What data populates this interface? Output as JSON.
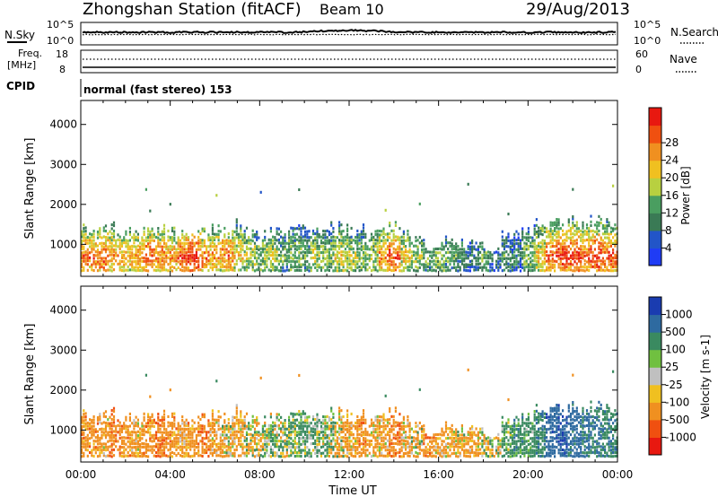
{
  "header": {
    "station": "Zhongshan Station (fitACF)",
    "beam": "Beam 10",
    "date": "29/Aug/2013"
  },
  "strip_noise": {
    "left_label": "N.Sky",
    "right_label": "N.Search",
    "left_ticks": [
      "10^5",
      "10^0"
    ],
    "right_ticks": [
      "10^5",
      "10^0"
    ]
  },
  "strip_freq": {
    "left_label_1": "Freq.",
    "left_label_2": "[MHz]",
    "right_label": "Nave",
    "left_ticks": [
      "18",
      "8"
    ],
    "right_ticks": [
      "60",
      "0"
    ]
  },
  "cpid": {
    "label": "CPID",
    "text": "normal (fast stereo) 153"
  },
  "colors": {
    "power_scale": [
      "#1f3cf5",
      "#2255c8",
      "#3a7a55",
      "#4a9e60",
      "#b8d040",
      "#f0c020",
      "#f09020",
      "#f05010",
      "#e81810"
    ],
    "velocity_scale": [
      "#e81810",
      "#f05010",
      "#f09020",
      "#f0c020",
      "#c0c0c0",
      "#70c040",
      "#3a8a60",
      "#2e6aa0",
      "#1a3cb0"
    ]
  },
  "chart_data": [
    {
      "type": "heatmap",
      "panel": "power",
      "ylabel": "Slant Range [km]",
      "ylim": [
        200,
        4600
      ],
      "yticks": [
        "1000",
        "2000",
        "3000",
        "4000"
      ],
      "colorbar_label": "Power [dB]",
      "colorbar_ticks": [
        "4",
        "8",
        "12",
        "16",
        "20",
        "24",
        "28"
      ],
      "colorbar_range": [
        0,
        30
      ],
      "x_hours": [
        0.5,
        1.0,
        1.5,
        2.0,
        2.5,
        3.0,
        3.5,
        4.0,
        4.5,
        5.0,
        5.5,
        6.0,
        6.5,
        7.0,
        7.5,
        8.0,
        8.5,
        9.0,
        9.5,
        10.0,
        10.5,
        11.0,
        11.5,
        12.0,
        12.5,
        13.0,
        13.5,
        14.0,
        14.5,
        15.0,
        15.5,
        16.0,
        16.5,
        17.0,
        17.5,
        18.0,
        18.5,
        19.0,
        19.5,
        20.0,
        20.5,
        21.0,
        21.5,
        22.0,
        22.5,
        23.0,
        23.5
      ],
      "echo_top_km": [
        1400,
        1450,
        1350,
        1300,
        1350,
        1300,
        1350,
        1300,
        1250,
        1200,
        1300,
        1350,
        1300,
        1400,
        1300,
        1200,
        1250,
        1200,
        1400,
        1300,
        1350,
        1400,
        1500,
        1300,
        1350,
        1200,
        1400,
        1600,
        1300,
        1000,
        950,
        1000,
        1100,
        1000,
        1050,
        950,
        800,
        1200,
        1250,
        1300,
        1600,
        1900,
        1800,
        1700,
        1750,
        1800,
        1600
      ],
      "peak_db": [
        24,
        26,
        22,
        20,
        22,
        26,
        24,
        22,
        26,
        28,
        24,
        22,
        24,
        20,
        16,
        14,
        16,
        12,
        14,
        12,
        16,
        14,
        18,
        16,
        14,
        16,
        22,
        26,
        18,
        14,
        12,
        14,
        12,
        10,
        8,
        12,
        8,
        10,
        8,
        14,
        20,
        26,
        28,
        28,
        26,
        28,
        26
      ]
    },
    {
      "type": "heatmap",
      "panel": "velocity",
      "ylabel": "Slant Range [km]",
      "xlabel": "Time UT",
      "ylim": [
        200,
        4600
      ],
      "yticks": [
        "1000",
        "2000",
        "3000",
        "4000"
      ],
      "xticks": [
        "00:00",
        "04:00",
        "08:00",
        "12:00",
        "16:00",
        "20:00",
        "00:00"
      ],
      "xlim_hours": [
        0,
        24
      ],
      "colorbar_label": "Velocity [m s-1]",
      "colorbar_ticks": [
        "1000",
        "500",
        "100",
        "25",
        "-25",
        "-100",
        "-500",
        "-1000"
      ],
      "x_hours": [
        0.5,
        1.0,
        1.5,
        2.0,
        2.5,
        3.0,
        3.5,
        4.0,
        4.5,
        5.0,
        5.5,
        6.0,
        6.5,
        7.0,
        7.5,
        8.0,
        8.5,
        9.0,
        9.5,
        10.0,
        10.5,
        11.0,
        11.5,
        12.0,
        12.5,
        13.0,
        13.5,
        14.0,
        14.5,
        15.0,
        15.5,
        16.0,
        16.5,
        17.0,
        17.5,
        18.0,
        18.5,
        19.0,
        19.5,
        20.0,
        20.5,
        21.0,
        21.5,
        22.0,
        22.5,
        23.0,
        23.5
      ],
      "echo_top_km": [
        1400,
        1450,
        1350,
        1300,
        1350,
        1300,
        1350,
        1300,
        1250,
        1200,
        1300,
        1350,
        1300,
        1400,
        1300,
        1200,
        1250,
        1200,
        1400,
        1300,
        1350,
        1400,
        1500,
        1300,
        1350,
        1200,
        1400,
        1600,
        1300,
        1000,
        950,
        1000,
        1100,
        1000,
        1050,
        950,
        800,
        1200,
        1250,
        1300,
        1600,
        1900,
        1800,
        1700,
        1750,
        1800,
        1600
      ],
      "dominant_velocity": [
        -300,
        -200,
        -400,
        -300,
        -200,
        -300,
        -400,
        -300,
        -200,
        -300,
        -400,
        -200,
        -100,
        -200,
        -50,
        20,
        80,
        100,
        150,
        200,
        150,
        100,
        -100,
        -200,
        -300,
        -150,
        -200,
        -400,
        -200,
        -100,
        -300,
        -200,
        -150,
        -100,
        -200,
        -50,
        20,
        200,
        300,
        250,
        400,
        800,
        900,
        700,
        600,
        500,
        400
      ]
    }
  ]
}
